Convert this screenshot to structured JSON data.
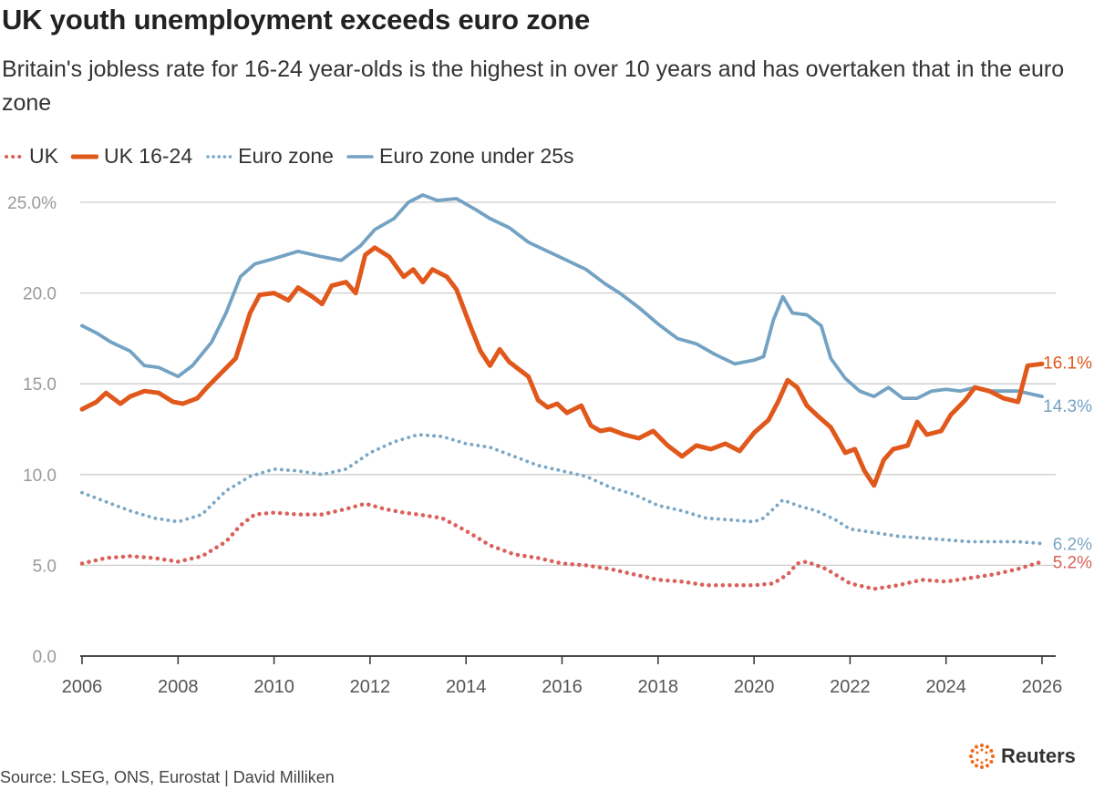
{
  "title": "UK youth unemployment exceeds euro zone",
  "subtitle": "Britain's jobless rate for 16-24 year-olds is the highest in over 10 years and has overtaken that in the euro zone",
  "source": "Source: LSEG, ONS, Eurostat | David Milliken",
  "brand": "Reuters",
  "colors": {
    "uk": "#d9615a",
    "uk_youth": "#e0581b",
    "euro": "#7aa7c5",
    "euro_youth": "#74a2c3",
    "grid": "#cccccc",
    "axis": "#333333"
  },
  "chart_data": {
    "type": "line",
    "title": "UK youth unemployment exceeds euro zone",
    "xlabel": "",
    "ylabel": "",
    "xlim": [
      2006,
      2026
    ],
    "ylim": [
      0,
      25
    ],
    "grid": true,
    "legend_position": "top-left",
    "x_ticks": [
      "2006",
      "2008",
      "2010",
      "2012",
      "2014",
      "2016",
      "2018",
      "2020",
      "2022",
      "2024",
      "2026"
    ],
    "y_ticks": [
      "0.0",
      "5.0",
      "10.0",
      "15.0",
      "20.0",
      "25.0%"
    ],
    "series": [
      {
        "name": "UK",
        "style": "dotted",
        "end_label": "5.2%",
        "points": [
          [
            2006,
            5.1
          ],
          [
            2006.5,
            5.4
          ],
          [
            2007,
            5.5
          ],
          [
            2007.5,
            5.4
          ],
          [
            2008,
            5.2
          ],
          [
            2008.5,
            5.5
          ],
          [
            2009,
            6.3
          ],
          [
            2009.3,
            7.2
          ],
          [
            2009.6,
            7.8
          ],
          [
            2010,
            7.9
          ],
          [
            2010.5,
            7.8
          ],
          [
            2011,
            7.8
          ],
          [
            2011.5,
            8.1
          ],
          [
            2011.9,
            8.4
          ],
          [
            2012.3,
            8.1
          ],
          [
            2012.7,
            7.9
          ],
          [
            2013,
            7.8
          ],
          [
            2013.5,
            7.6
          ],
          [
            2014,
            6.9
          ],
          [
            2014.5,
            6.1
          ],
          [
            2015,
            5.6
          ],
          [
            2015.5,
            5.4
          ],
          [
            2016,
            5.1
          ],
          [
            2016.5,
            5.0
          ],
          [
            2017,
            4.8
          ],
          [
            2017.5,
            4.5
          ],
          [
            2018,
            4.2
          ],
          [
            2018.5,
            4.1
          ],
          [
            2019,
            3.9
          ],
          [
            2019.5,
            3.9
          ],
          [
            2020,
            3.9
          ],
          [
            2020.4,
            4.0
          ],
          [
            2020.7,
            4.5
          ],
          [
            2020.9,
            5.1
          ],
          [
            2021.1,
            5.2
          ],
          [
            2021.5,
            4.8
          ],
          [
            2022,
            4.0
          ],
          [
            2022.5,
            3.7
          ],
          [
            2023,
            3.9
          ],
          [
            2023.5,
            4.2
          ],
          [
            2024,
            4.1
          ],
          [
            2024.5,
            4.3
          ],
          [
            2025,
            4.5
          ],
          [
            2025.5,
            4.8
          ],
          [
            2026,
            5.2
          ]
        ]
      },
      {
        "name": "UK 16-24",
        "style": "thick",
        "end_label": "16.1%",
        "points": [
          [
            2006,
            13.6
          ],
          [
            2006.3,
            14.0
          ],
          [
            2006.5,
            14.5
          ],
          [
            2006.8,
            13.9
          ],
          [
            2007,
            14.3
          ],
          [
            2007.3,
            14.6
          ],
          [
            2007.6,
            14.5
          ],
          [
            2007.9,
            14.0
          ],
          [
            2008.1,
            13.9
          ],
          [
            2008.4,
            14.2
          ],
          [
            2008.6,
            14.8
          ],
          [
            2008.9,
            15.6
          ],
          [
            2009.2,
            16.4
          ],
          [
            2009.5,
            18.9
          ],
          [
            2009.7,
            19.9
          ],
          [
            2010,
            20.0
          ],
          [
            2010.3,
            19.6
          ],
          [
            2010.5,
            20.3
          ],
          [
            2010.8,
            19.8
          ],
          [
            2011,
            19.4
          ],
          [
            2011.2,
            20.4
          ],
          [
            2011.5,
            20.6
          ],
          [
            2011.7,
            20.0
          ],
          [
            2011.9,
            22.1
          ],
          [
            2012.1,
            22.5
          ],
          [
            2012.4,
            22.0
          ],
          [
            2012.7,
            20.9
          ],
          [
            2012.9,
            21.3
          ],
          [
            2013.1,
            20.6
          ],
          [
            2013.3,
            21.3
          ],
          [
            2013.6,
            20.9
          ],
          [
            2013.8,
            20.2
          ],
          [
            2014.1,
            18.1
          ],
          [
            2014.3,
            16.8
          ],
          [
            2014.5,
            16.0
          ],
          [
            2014.7,
            16.9
          ],
          [
            2014.9,
            16.2
          ],
          [
            2015.1,
            15.8
          ],
          [
            2015.3,
            15.4
          ],
          [
            2015.5,
            14.1
          ],
          [
            2015.7,
            13.7
          ],
          [
            2015.9,
            13.9
          ],
          [
            2016.1,
            13.4
          ],
          [
            2016.4,
            13.8
          ],
          [
            2016.6,
            12.7
          ],
          [
            2016.8,
            12.4
          ],
          [
            2017,
            12.5
          ],
          [
            2017.3,
            12.2
          ],
          [
            2017.6,
            12.0
          ],
          [
            2017.9,
            12.4
          ],
          [
            2018.2,
            11.6
          ],
          [
            2018.5,
            11.0
          ],
          [
            2018.8,
            11.6
          ],
          [
            2019.1,
            11.4
          ],
          [
            2019.4,
            11.7
          ],
          [
            2019.7,
            11.3
          ],
          [
            2020,
            12.3
          ],
          [
            2020.3,
            13.0
          ],
          [
            2020.5,
            14.0
          ],
          [
            2020.7,
            15.2
          ],
          [
            2020.9,
            14.8
          ],
          [
            2021.1,
            13.8
          ],
          [
            2021.3,
            13.3
          ],
          [
            2021.6,
            12.6
          ],
          [
            2021.9,
            11.2
          ],
          [
            2022.1,
            11.4
          ],
          [
            2022.3,
            10.2
          ],
          [
            2022.5,
            9.4
          ],
          [
            2022.7,
            10.8
          ],
          [
            2022.9,
            11.4
          ],
          [
            2023.2,
            11.6
          ],
          [
            2023.4,
            12.9
          ],
          [
            2023.6,
            12.2
          ],
          [
            2023.9,
            12.4
          ],
          [
            2024.1,
            13.3
          ],
          [
            2024.4,
            14.1
          ],
          [
            2024.6,
            14.8
          ],
          [
            2024.9,
            14.6
          ],
          [
            2025.2,
            14.2
          ],
          [
            2025.5,
            14.0
          ],
          [
            2025.7,
            16.0
          ],
          [
            2026,
            16.1
          ]
        ]
      },
      {
        "name": "Euro zone",
        "style": "dotted",
        "end_label": "6.2%",
        "points": [
          [
            2006,
            9.0
          ],
          [
            2006.5,
            8.5
          ],
          [
            2007,
            8.0
          ],
          [
            2007.5,
            7.6
          ],
          [
            2008,
            7.4
          ],
          [
            2008.5,
            7.8
          ],
          [
            2009,
            9.1
          ],
          [
            2009.5,
            9.9
          ],
          [
            2010,
            10.3
          ],
          [
            2010.5,
            10.2
          ],
          [
            2011,
            10.0
          ],
          [
            2011.5,
            10.3
          ],
          [
            2012,
            11.2
          ],
          [
            2012.5,
            11.8
          ],
          [
            2013,
            12.2
          ],
          [
            2013.5,
            12.1
          ],
          [
            2014,
            11.7
          ],
          [
            2014.5,
            11.5
          ],
          [
            2015,
            11.0
          ],
          [
            2015.5,
            10.5
          ],
          [
            2016,
            10.2
          ],
          [
            2016.5,
            9.9
          ],
          [
            2017,
            9.3
          ],
          [
            2017.5,
            8.9
          ],
          [
            2018,
            8.3
          ],
          [
            2018.5,
            8.0
          ],
          [
            2019,
            7.6
          ],
          [
            2019.5,
            7.5
          ],
          [
            2020,
            7.4
          ],
          [
            2020.2,
            7.6
          ],
          [
            2020.6,
            8.6
          ],
          [
            2020.9,
            8.3
          ],
          [
            2021.3,
            8.0
          ],
          [
            2021.7,
            7.5
          ],
          [
            2022,
            7.0
          ],
          [
            2022.5,
            6.8
          ],
          [
            2023,
            6.6
          ],
          [
            2023.5,
            6.5
          ],
          [
            2024,
            6.4
          ],
          [
            2024.5,
            6.3
          ],
          [
            2025,
            6.3
          ],
          [
            2025.5,
            6.3
          ],
          [
            2026,
            6.2
          ]
        ]
      },
      {
        "name": "Euro zone under 25s",
        "style": "solid",
        "end_label": "14.3%",
        "points": [
          [
            2006,
            18.2
          ],
          [
            2006.3,
            17.8
          ],
          [
            2006.6,
            17.3
          ],
          [
            2007,
            16.8
          ],
          [
            2007.3,
            16.0
          ],
          [
            2007.6,
            15.9
          ],
          [
            2008,
            15.4
          ],
          [
            2008.3,
            16.0
          ],
          [
            2008.7,
            17.3
          ],
          [
            2009,
            18.9
          ],
          [
            2009.3,
            20.9
          ],
          [
            2009.6,
            21.6
          ],
          [
            2010,
            21.9
          ],
          [
            2010.5,
            22.3
          ],
          [
            2011,
            22.0
          ],
          [
            2011.4,
            21.8
          ],
          [
            2011.8,
            22.6
          ],
          [
            2012.1,
            23.5
          ],
          [
            2012.5,
            24.1
          ],
          [
            2012.8,
            25.0
          ],
          [
            2013.1,
            25.4
          ],
          [
            2013.4,
            25.1
          ],
          [
            2013.8,
            25.2
          ],
          [
            2014.2,
            24.6
          ],
          [
            2014.5,
            24.1
          ],
          [
            2014.9,
            23.6
          ],
          [
            2015.3,
            22.8
          ],
          [
            2015.7,
            22.3
          ],
          [
            2016.1,
            21.8
          ],
          [
            2016.5,
            21.3
          ],
          [
            2016.9,
            20.5
          ],
          [
            2017.2,
            20.0
          ],
          [
            2017.6,
            19.2
          ],
          [
            2018,
            18.3
          ],
          [
            2018.4,
            17.5
          ],
          [
            2018.8,
            17.2
          ],
          [
            2019.2,
            16.6
          ],
          [
            2019.6,
            16.1
          ],
          [
            2020,
            16.3
          ],
          [
            2020.2,
            16.5
          ],
          [
            2020.4,
            18.5
          ],
          [
            2020.6,
            19.8
          ],
          [
            2020.8,
            18.9
          ],
          [
            2021.1,
            18.8
          ],
          [
            2021.4,
            18.2
          ],
          [
            2021.6,
            16.4
          ],
          [
            2021.9,
            15.3
          ],
          [
            2022.2,
            14.6
          ],
          [
            2022.5,
            14.3
          ],
          [
            2022.8,
            14.8
          ],
          [
            2023.1,
            14.2
          ],
          [
            2023.4,
            14.2
          ],
          [
            2023.7,
            14.6
          ],
          [
            2024,
            14.7
          ],
          [
            2024.3,
            14.6
          ],
          [
            2024.6,
            14.8
          ],
          [
            2024.9,
            14.6
          ],
          [
            2025.2,
            14.6
          ],
          [
            2025.5,
            14.6
          ],
          [
            2026,
            14.3
          ]
        ]
      }
    ]
  }
}
